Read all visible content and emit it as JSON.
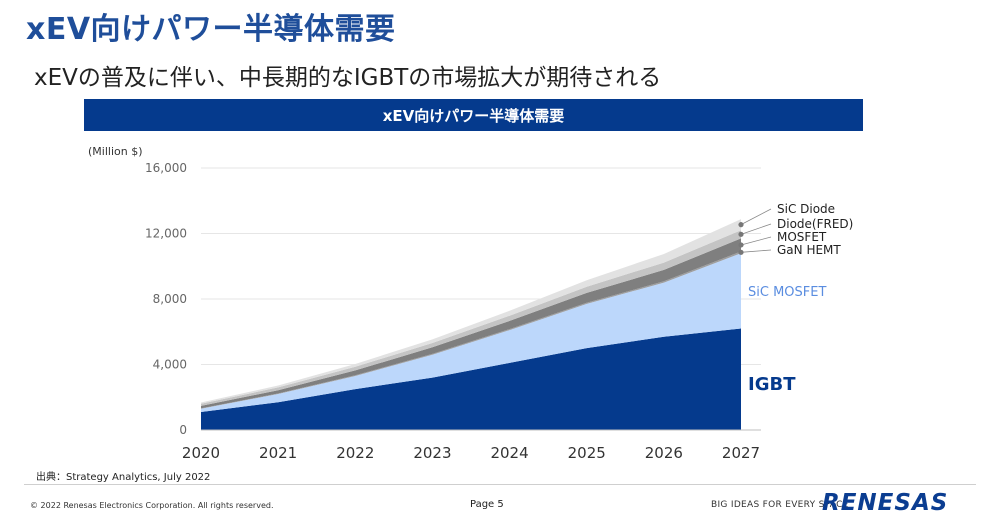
{
  "page": {
    "title": "xEV向けパワー半導体需要",
    "subtitle": "xEVの普及に伴い、中長期的なIGBTの市場拡大が期待される",
    "source": "出典：Strategy Analytics, July 2022",
    "footer": {
      "copyright": "© 2022 Renesas Electronics Corporation. All rights reserved.",
      "page": "Page 5",
      "tagline": "BIG IDEAS FOR EVERY SPACE",
      "logo": "RENESAS"
    }
  },
  "chart_data": {
    "type": "area",
    "stacked": true,
    "title": "xEV向けパワー半導体需要",
    "ylabel": "(Million $)",
    "ylim": [
      0,
      16000
    ],
    "yticks": [
      0,
      4000,
      8000,
      12000,
      16000
    ],
    "ytick_labels": [
      "0",
      "4,000",
      "8,000",
      "12,000",
      "16,000"
    ],
    "x": [
      "2020",
      "2021",
      "2022",
      "2023",
      "2024",
      "2025",
      "2026",
      "2027"
    ],
    "grid": true,
    "series": [
      {
        "name": "IGBT",
        "color": "#053a8d",
        "values": [
          1100,
          1700,
          2500,
          3200,
          4100,
          5000,
          5700,
          6200
        ]
      },
      {
        "name": "SiC MOSFET",
        "color": "#bcd7fb",
        "values": [
          200,
          500,
          800,
          1400,
          2000,
          2700,
          3300,
          4600
        ]
      },
      {
        "name": "GaN HEMT",
        "color": "#9e9e9e",
        "values": [
          20,
          30,
          40,
          50,
          60,
          70,
          80,
          100
        ]
      },
      {
        "name": "MOSFET",
        "color": "#7f7f7f",
        "values": [
          150,
          200,
          300,
          400,
          500,
          600,
          700,
          800
        ]
      },
      {
        "name": "Diode(FRED)",
        "color": "#c4c4c4",
        "values": [
          130,
          170,
          220,
          260,
          320,
          380,
          440,
          500
        ]
      },
      {
        "name": "SiC Diode",
        "color": "#e2e2e2",
        "values": [
          80,
          120,
          170,
          220,
          300,
          400,
          530,
          680
        ]
      }
    ]
  }
}
